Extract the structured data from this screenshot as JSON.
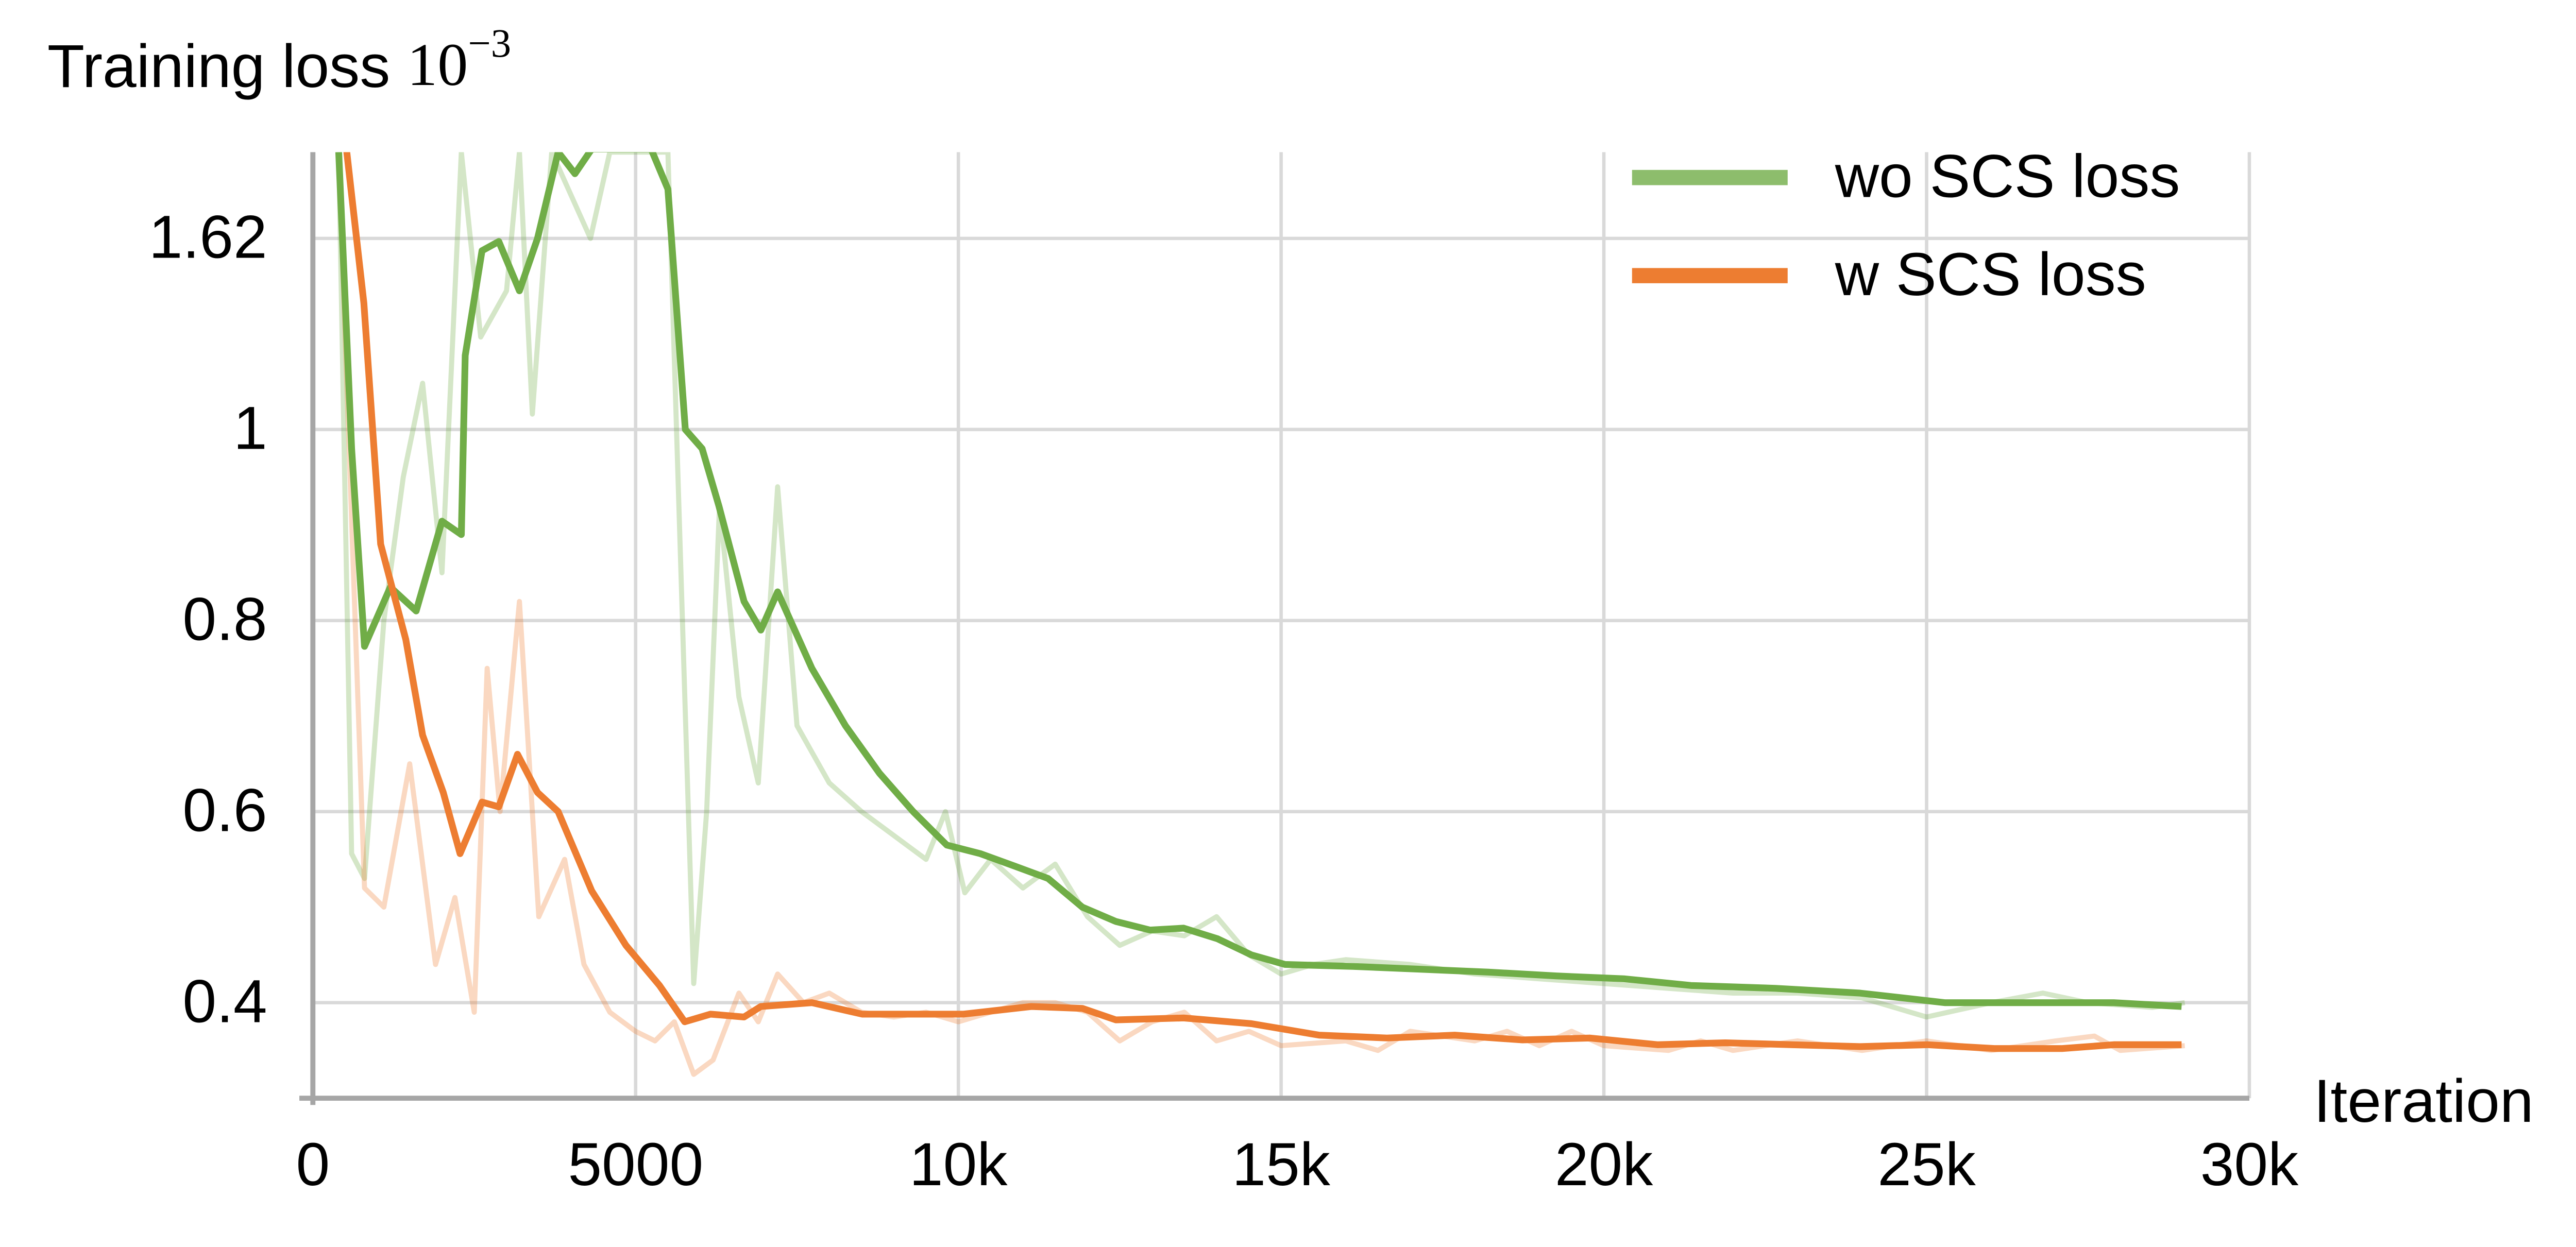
{
  "chart_data": {
    "type": "line",
    "y_label": "Training loss",
    "y_unit_base": "10",
    "y_unit_exponent": "−3",
    "x_label": "Iteration",
    "y_scale": "piecewise",
    "grid": true,
    "legend_position": "upper right",
    "xlim": [
      0,
      30000
    ],
    "xticks": [
      0,
      5000,
      {
        "value": 10000,
        "label": "10k"
      },
      {
        "value": 15000,
        "label": "15k"
      },
      {
        "value": 20000,
        "label": "20k"
      },
      {
        "value": 25000,
        "label": "25k"
      },
      {
        "value": 30000,
        "label": "30k"
      }
    ],
    "ylim": [
      0.3,
      1.9
    ],
    "yticks": [
      0.4,
      0.6,
      0.8,
      1.0,
      1.62
    ],
    "series": [
      {
        "name": "wo SCS loss",
        "color": "#70ad47",
        "x": [
          400,
          600,
          800,
          1200,
          1600,
          2000,
          2300,
          2360,
          2620,
          2880,
          3200,
          3480,
          3800,
          4060,
          4320,
          5240,
          5500,
          5770,
          6030,
          6290,
          6680,
          6940,
          7200,
          7730,
          8250,
          8780,
          9300,
          9820,
          10340,
          10870,
          11390,
          11920,
          12440,
          12970,
          13490,
          14010,
          14540,
          15060,
          16110,
          17160,
          18210,
          19260,
          20310,
          21350,
          22660,
          23970,
          25280,
          26590,
          27900,
          28950
        ],
        "values": [
          1.9,
          0.98,
          0.773,
          0.835,
          0.81,
          0.904,
          0.89,
          1.24,
          1.58,
          1.61,
          1.45,
          1.62,
          1.9,
          1.83,
          1.91,
          1.91,
          1.78,
          1.0,
          0.98,
          0.92,
          0.82,
          0.79,
          0.83,
          0.75,
          0.69,
          0.64,
          0.6,
          0.565,
          0.556,
          0.543,
          0.53,
          0.5,
          0.485,
          0.476,
          0.478,
          0.467,
          0.45,
          0.44,
          0.438,
          0.435,
          0.432,
          0.428,
          0.425,
          0.418,
          0.415,
          0.41,
          0.4,
          0.4,
          0.4,
          0.396
        ],
        "raw_x": [
          400,
          600,
          800,
          1100,
          1400,
          1700,
          2000,
          2300,
          2600,
          3000,
          3200,
          3400,
          3700,
          4300,
          4600,
          5500,
          5900,
          6100,
          6300,
          6600,
          6900,
          7200,
          7500,
          8000,
          8500,
          9000,
          9500,
          9800,
          10100,
          10500,
          11000,
          11500,
          12000,
          12500,
          13000,
          13500,
          14000,
          14500,
          15000,
          15500,
          16000,
          17000,
          18000,
          19000,
          20000,
          21000,
          22000,
          23000,
          24000,
          25000,
          26000,
          26800,
          27500,
          28500,
          29000
        ],
        "raw_values": [
          1.9,
          0.556,
          0.53,
          0.8,
          0.95,
          1.15,
          0.85,
          1.9,
          1.3,
          1.45,
          1.9,
          1.05,
          1.9,
          1.62,
          1.9,
          1.9,
          0.42,
          0.6,
          0.92,
          0.72,
          0.63,
          0.94,
          0.69,
          0.63,
          0.6,
          0.575,
          0.55,
          0.6,
          0.515,
          0.55,
          0.52,
          0.545,
          0.49,
          0.46,
          0.475,
          0.47,
          0.49,
          0.45,
          0.43,
          0.44,
          0.445,
          0.44,
          0.43,
          0.425,
          0.42,
          0.415,
          0.41,
          0.41,
          0.405,
          0.385,
          0.4,
          0.41,
          0.4,
          0.395,
          0.4
        ]
      },
      {
        "name": "w SCS loss",
        "color": "#ed7d31",
        "x": [
          520,
          790,
          1050,
          1440,
          1700,
          2020,
          2280,
          2620,
          2880,
          3170,
          3480,
          3800,
          4320,
          4850,
          5370,
          5760,
          6160,
          6680,
          6940,
          7730,
          8510,
          9300,
          10080,
          11130,
          11920,
          12440,
          13490,
          14540,
          15590,
          16640,
          17690,
          18740,
          19780,
          20830,
          21880,
          22920,
          23970,
          25010,
          26050,
          27100,
          27900,
          28950
        ],
        "values": [
          1.91,
          1.41,
          0.88,
          0.78,
          0.68,
          0.62,
          0.556,
          0.61,
          0.605,
          0.66,
          0.62,
          0.6,
          0.517,
          0.46,
          0.418,
          0.38,
          0.388,
          0.385,
          0.396,
          0.4,
          0.388,
          0.388,
          0.388,
          0.396,
          0.394,
          0.382,
          0.384,
          0.378,
          0.366,
          0.363,
          0.366,
          0.361,
          0.363,
          0.356,
          0.358,
          0.356,
          0.354,
          0.356,
          0.352,
          0.352,
          0.356,
          0.356
        ],
        "raw_x": [
          400,
          800,
          1100,
          1500,
          1900,
          2200,
          2500,
          2700,
          2900,
          3200,
          3500,
          3900,
          4200,
          4600,
          5000,
          5300,
          5600,
          5900,
          6200,
          6600,
          6900,
          7200,
          7600,
          8000,
          8500,
          9000,
          9500,
          10000,
          10500,
          11000,
          11500,
          12000,
          12500,
          13000,
          13500,
          14000,
          14500,
          15000,
          16000,
          16500,
          17000,
          17500,
          18000,
          18500,
          19000,
          19500,
          20000,
          21000,
          21500,
          22000,
          23000,
          24000,
          25000,
          26000,
          27000,
          27600,
          28000,
          29000
        ],
        "raw_values": [
          1.9,
          0.52,
          0.5,
          0.65,
          0.44,
          0.51,
          0.39,
          0.75,
          0.6,
          0.82,
          0.49,
          0.55,
          0.44,
          0.39,
          0.37,
          0.36,
          0.38,
          0.325,
          0.34,
          0.41,
          0.38,
          0.43,
          0.4,
          0.41,
          0.39,
          0.385,
          0.39,
          0.38,
          0.39,
          0.4,
          0.4,
          0.39,
          0.36,
          0.38,
          0.39,
          0.36,
          0.37,
          0.355,
          0.36,
          0.35,
          0.37,
          0.365,
          0.36,
          0.37,
          0.355,
          0.37,
          0.355,
          0.35,
          0.36,
          0.35,
          0.36,
          0.35,
          0.36,
          0.35,
          0.36,
          0.365,
          0.35,
          0.355
        ]
      }
    ]
  }
}
